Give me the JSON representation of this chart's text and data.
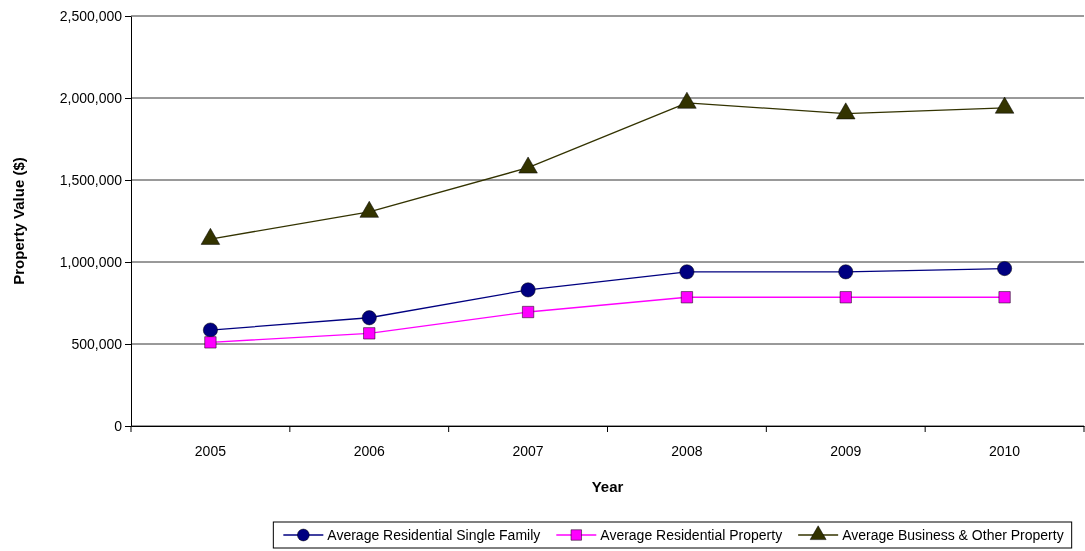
{
  "chart_data": {
    "type": "line",
    "xlabel": "Year",
    "ylabel": "Property Value ($)",
    "categories": [
      "2005",
      "2006",
      "2007",
      "2008",
      "2009",
      "2010"
    ],
    "series": [
      {
        "name": "Average Residential Single Family",
        "color": "#000080",
        "marker": "circle",
        "values": [
          585000,
          660000,
          830000,
          940000,
          940000,
          960000
        ]
      },
      {
        "name": "Average Residential Property",
        "color": "#ff00ff",
        "marker": "square",
        "values": [
          510000,
          565000,
          695000,
          785000,
          785000,
          785000
        ]
      },
      {
        "name": "Average Business & Other Property",
        "color": "#333300",
        "marker": "triangle",
        "values": [
          1140000,
          1305000,
          1575000,
          1970000,
          1905000,
          1940000
        ]
      }
    ],
    "ylim": [
      0,
      2500000
    ],
    "yticks": [
      {
        "value": 0,
        "label": "0"
      },
      {
        "value": 500000,
        "label": "500,000"
      },
      {
        "value": 1000000,
        "label": "1,000,000"
      },
      {
        "value": 1500000,
        "label": "1,500,000"
      },
      {
        "value": 2000000,
        "label": "2,000,000"
      },
      {
        "value": 2500000,
        "label": "2,500,000"
      }
    ],
    "grid": "y",
    "legend": "bottom",
    "line_style": "solid"
  }
}
